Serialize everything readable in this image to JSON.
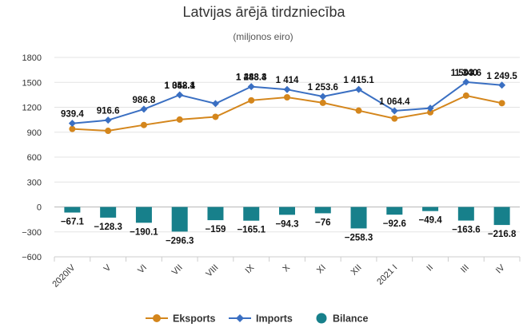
{
  "chart_data": {
    "type": "line",
    "title": "Latvijas ārējā tirdzniecība",
    "subtitle": "(miljonos eiro)",
    "categories": [
      "2020IV",
      "V",
      "VI",
      "VII",
      "VIII",
      "IX",
      "X",
      "XI",
      "XII",
      "2021 I",
      "II",
      "III",
      "IV"
    ],
    "ylim": [
      -600,
      1800
    ],
    "yticks": [
      -600,
      -300,
      0,
      300,
      600,
      900,
      1200,
      1500,
      1800
    ],
    "ytick_labels": [
      "−600",
      "−300",
      "0",
      "300",
      "600",
      "900",
      "1200",
      "1500",
      "1800"
    ],
    "grid": true,
    "legend_position": "bottom",
    "series": [
      {
        "name": "Eksports",
        "type": "line",
        "color": "#d4861c",
        "marker": "circle",
        "values": [
          939.4,
          916.6,
          986.8,
          1052.1,
          1085,
          1283.3,
          1320,
          1253.6,
          1160,
          1064.4,
          1140,
          1340,
          1249.5
        ],
        "labels": [
          "939.4",
          "916.6",
          "986.8",
          "1 052.1",
          "",
          "1 283.3",
          "",
          "1 253.6",
          "",
          "1 064.4",
          "",
          "1 340",
          "1 249.5"
        ]
      },
      {
        "name": "Imports",
        "type": "line",
        "color": "#3a6fc2",
        "marker": "diamond",
        "values": [
          1006.5,
          1044.9,
          1176.9,
          1348.4,
          1244,
          1448.4,
          1414,
          1329.6,
          1415.1,
          1157,
          1189.4,
          1503.6,
          1466.3
        ],
        "labels": [
          "",
          "",
          "",
          "1 348.4",
          "",
          "1 448.4",
          "1 414",
          "",
          "1 415.1",
          "",
          "",
          "1 503.6",
          ""
        ]
      },
      {
        "name": "Bilance",
        "type": "bar",
        "color": "#17808b",
        "values": [
          -67.1,
          -128.3,
          -190.1,
          -296.3,
          -159,
          -165.1,
          -94.3,
          -76,
          -258.3,
          -92.6,
          -49.4,
          -163.6,
          -216.8
        ],
        "labels": [
          "−67.1",
          "−128.3",
          "−190.1",
          "−296.3",
          "−159",
          "−165.1",
          "−94.3",
          "−76",
          "−258.3",
          "−92.6",
          "−49.4",
          "−163.6",
          "−216.8"
        ]
      }
    ]
  }
}
